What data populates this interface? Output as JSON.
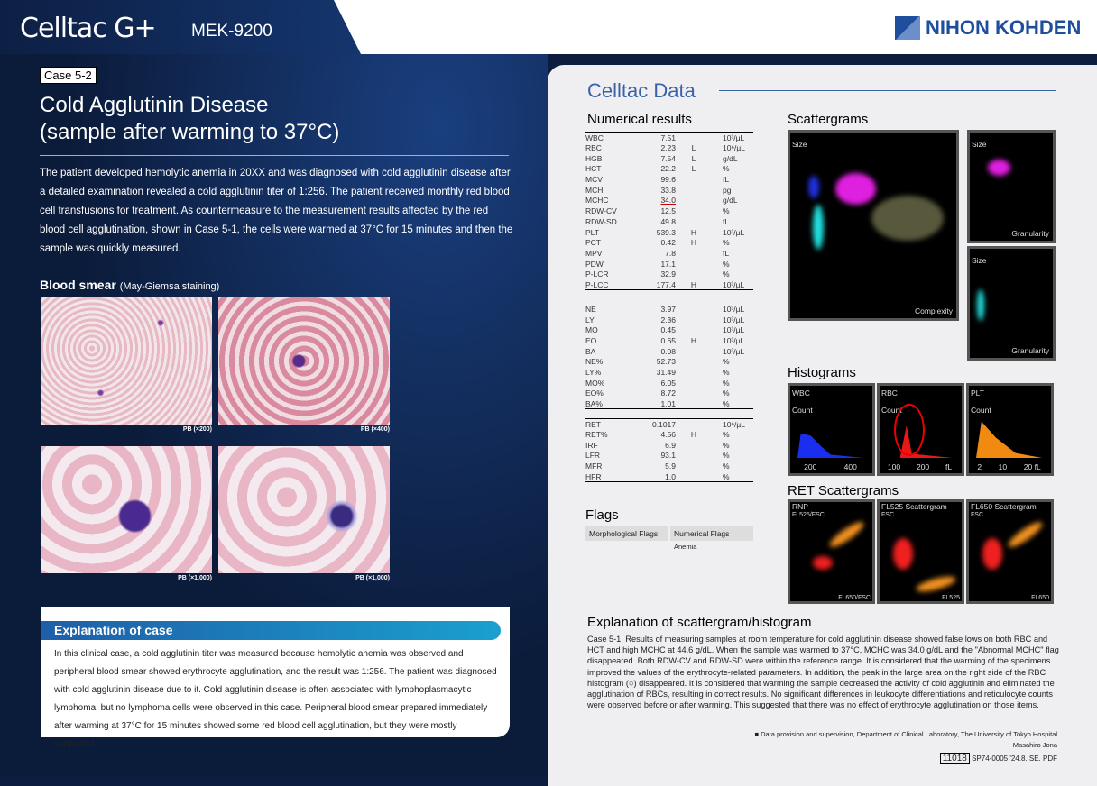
{
  "header": {
    "logo": "Celltac G+",
    "model": "MEK-9200",
    "brand": "NIHON KOHDEN"
  },
  "left": {
    "case_label": "Case 5-2",
    "title_line1": "Cold Agglutinin Disease",
    "title_line2": "(sample after warming to 37°C)",
    "intro": "The patient developed hemolytic anemia in 20XX and was diagnosed with cold agglutinin disease after a detailed examination revealed a cold agglutinin titer of 1:256. The patient received monthly red blood cell transfusions for treatment. As countermeasure to the measurement results affected by the red blood cell agglutination, shown in Case 5-1, the cells were warmed at 37°C for 15 minutes and then the sample was quickly measured.",
    "smear_title": "Blood smear",
    "smear_sub": "(May-Giemsa staining)",
    "photos": [
      "PB (×200)",
      "PB (×400)",
      "PB (×1,000)",
      "PB (×1,000)"
    ],
    "explanation_title": "Explanation of case",
    "explanation": "In this clinical case, a cold agglutinin titer was measured because hemolytic anemia was observed and peripheral blood smear showed erythrocyte agglutination, and the result was 1:256. The patient was diagnosed with cold agglutinin disease due to it. Cold agglutinin disease is often associated with lymphoplasmacytic lymphoma, but no lymphoma cells were observed in this case. Peripheral blood smear prepared immediately after warming at 37°C for 15 minutes showed some red blood cell agglutination, but they were mostly separated."
  },
  "right": {
    "title": "Celltac Data",
    "numerical_title": "Numerical results",
    "table1": [
      [
        "WBC",
        "7.51",
        "",
        "10³/µL"
      ],
      [
        "RBC",
        "2.23",
        "L",
        "10⁶/µL"
      ],
      [
        "HGB",
        "7.54",
        "L",
        "g/dL"
      ],
      [
        "HCT",
        "22.2",
        "L",
        "%"
      ],
      [
        "MCV",
        "99.6",
        "",
        "fL"
      ],
      [
        "MCH",
        "33.8",
        "",
        "pg"
      ],
      [
        "MCHC",
        "34.0",
        "",
        "g/dL"
      ],
      [
        "RDW-CV",
        "12.5",
        "",
        "%"
      ],
      [
        "RDW-SD",
        "49.8",
        "",
        "fL"
      ],
      [
        "PLT",
        "539.3",
        "H",
        "10³/µL"
      ],
      [
        "PCT",
        "0.42",
        "H",
        "%"
      ],
      [
        "MPV",
        "7.8",
        "",
        "fL"
      ],
      [
        "PDW",
        "17.1",
        "",
        "%"
      ],
      [
        "P-LCR",
        "32.9",
        "",
        "%"
      ],
      [
        "P-LCC",
        "177.4",
        "H",
        "10³/µL"
      ]
    ],
    "table2": [
      [
        "NE",
        "3.97",
        "",
        "10³/µL"
      ],
      [
        "LY",
        "2.36",
        "",
        "10³/µL"
      ],
      [
        "MO",
        "0.45",
        "",
        "10³/µL"
      ],
      [
        "EO",
        "0.65",
        "H",
        "10³/µL"
      ],
      [
        "BA",
        "0.08",
        "",
        "10³/µL"
      ],
      [
        "NE%",
        "52.73",
        "",
        "%"
      ],
      [
        "LY%",
        "31.49",
        "",
        "%"
      ],
      [
        "MO%",
        "6.05",
        "",
        "%"
      ],
      [
        "EO%",
        "8.72",
        "",
        "%"
      ],
      [
        "BA%",
        "1.01",
        "",
        "%"
      ]
    ],
    "table3": [
      [
        "RET",
        "0.1017",
        "",
        "10⁶/µL"
      ],
      [
        "RET%",
        "4.56",
        "H",
        "%"
      ],
      [
        "IRF",
        "6.9",
        "",
        "%"
      ],
      [
        "LFR",
        "93.1",
        "",
        "%"
      ],
      [
        "MFR",
        "5.9",
        "",
        "%"
      ],
      [
        "HFR",
        "1.0",
        "",
        "%"
      ]
    ],
    "flags_title": "Flags",
    "flags": {
      "morph": "Morphological Flags",
      "num": "Numerical Flags",
      "num_value": "Anemia"
    },
    "scatter_title": "Scattergrams",
    "scatter": {
      "size": "Size",
      "complexity": "Complexity",
      "granularity": "Granularity"
    },
    "hist_title": "Histograms",
    "hist": [
      {
        "name": "WBC",
        "count": "Count",
        "ticks": [
          "200",
          "400"
        ]
      },
      {
        "name": "RBC",
        "count": "Count",
        "ticks": [
          "100",
          "200",
          "fL"
        ]
      },
      {
        "name": "PLT",
        "count": "Count",
        "ticks": [
          "2",
          "10",
          "20 fL"
        ]
      }
    ],
    "ret_title": "RET Scattergrams",
    "ret": [
      {
        "name": "RNP",
        "sub": "FL525/FSC",
        "foot": "FL650/FSC"
      },
      {
        "name": "FL525 Scattergram",
        "sub": "FSC",
        "foot": "FL525"
      },
      {
        "name": "FL650 Scattergram",
        "sub": "FSC",
        "foot": "FL650"
      }
    ],
    "expl_title": "Explanation of scattergram/histogram",
    "expl": "Case 5-1: Results of measuring samples at room temperature for cold agglutinin disease showed false lows on both RBC and HCT and high MCHC at 44.6 g/dL. When the sample was warmed to 37°C, MCHC was 34.0 g/dL and the \"Abnormal MCHC\" flag disappeared. Both RDW-CV and RDW-SD were within the reference range. It is considered that the warming of the specimens improved the values of the erythrocyte-related parameters. In addition, the peak in the large area on the right side of the RBC histogram (○) disappeared. It is considered that warming the sample decreased the activity of cold agglutinin and eliminated the agglutination of RBCs, resulting in correct results. No significant differences in leukocyte differentiations and reticulocyte counts were observed before or after warming. This suggested that there was no effect of erythrocyte agglutination on those items.",
    "credit1": "■ Data provision and supervision, Department of Clinical Laboratory, The University of Tokyo Hospital",
    "credit2": "Masahiro Jona",
    "code": "11018",
    "code_rest": "SP74-0005 '24.8. SE. PDF"
  }
}
